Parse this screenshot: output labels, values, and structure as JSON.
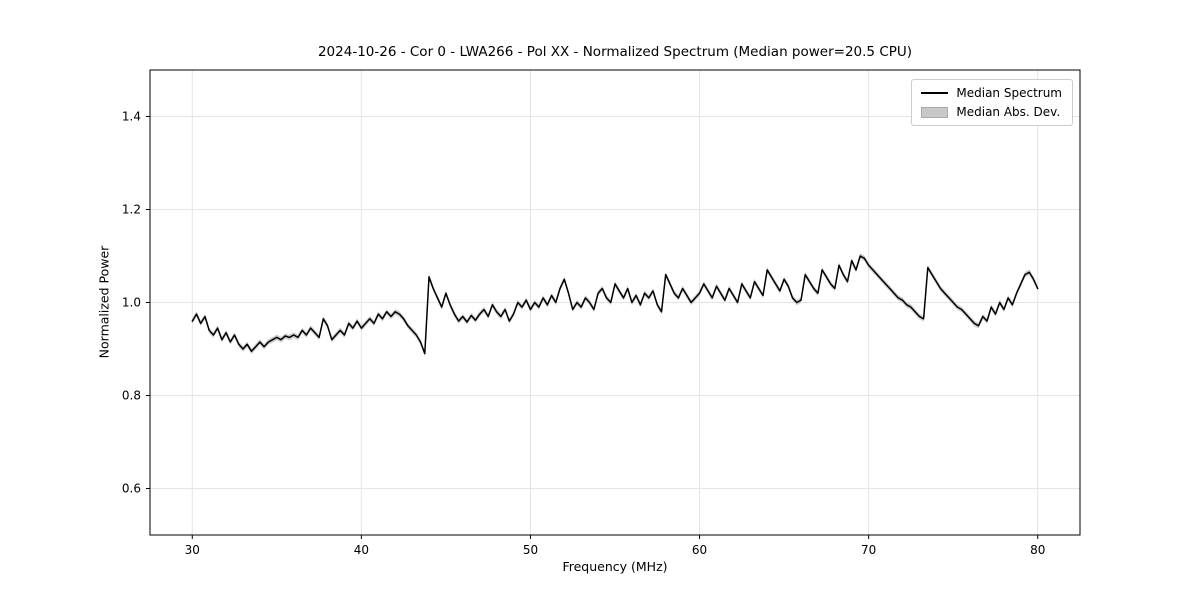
{
  "chart_data": {
    "type": "line",
    "title": "2024-10-26 - Cor 0 - LWA266 - Pol XX - Normalized Spectrum (Median power=20.5 CPU)",
    "xlabel": "Frequency (MHz)",
    "ylabel": "Normalized Power",
    "xlim": [
      27.5,
      82.5
    ],
    "ylim": [
      0.5,
      1.5
    ],
    "xticks": [
      30,
      40,
      50,
      60,
      70,
      80
    ],
    "xtick_labels": [
      "30",
      "40",
      "50",
      "60",
      "70",
      "80"
    ],
    "yticks": [
      0.6,
      0.8,
      1.0,
      1.2,
      1.4
    ],
    "ytick_labels": [
      "0.6",
      "0.8",
      "1.0",
      "1.2",
      "1.4"
    ],
    "grid": true,
    "legend_position": "upper right",
    "series": [
      {
        "name": "Median Spectrum",
        "color": "#000000",
        "x": [
          30,
          30.25,
          30.5,
          30.75,
          31,
          31.25,
          31.5,
          31.75,
          32,
          32.25,
          32.5,
          32.75,
          33,
          33.25,
          33.5,
          33.75,
          34,
          34.25,
          34.5,
          34.75,
          35,
          35.25,
          35.5,
          35.75,
          36,
          36.25,
          36.5,
          36.75,
          37,
          37.25,
          37.5,
          37.75,
          38,
          38.25,
          38.5,
          38.75,
          39,
          39.25,
          39.5,
          39.75,
          40,
          40.25,
          40.5,
          40.75,
          41,
          41.25,
          41.5,
          41.75,
          42,
          42.25,
          42.5,
          42.75,
          43,
          43.25,
          43.5,
          43.75,
          44,
          44.25,
          44.5,
          44.75,
          45,
          45.25,
          45.5,
          45.75,
          46,
          46.25,
          46.5,
          46.75,
          47,
          47.25,
          47.5,
          47.75,
          48,
          48.25,
          48.5,
          48.75,
          49,
          49.25,
          49.5,
          49.75,
          50,
          50.25,
          50.5,
          50.75,
          51,
          51.25,
          51.5,
          51.75,
          52,
          52.25,
          52.5,
          52.75,
          53,
          53.25,
          53.5,
          53.75,
          54,
          54.25,
          54.5,
          54.75,
          55,
          55.25,
          55.5,
          55.75,
          56,
          56.25,
          56.5,
          56.75,
          57,
          57.25,
          57.5,
          57.75,
          58,
          58.25,
          58.5,
          58.75,
          59,
          59.25,
          59.5,
          59.75,
          60,
          60.25,
          60.5,
          60.75,
          61,
          61.25,
          61.5,
          61.75,
          62,
          62.25,
          62.5,
          62.75,
          63,
          63.25,
          63.5,
          63.75,
          64,
          64.25,
          64.5,
          64.75,
          65,
          65.25,
          65.5,
          65.75,
          66,
          66.25,
          66.5,
          66.75,
          67,
          67.25,
          67.5,
          67.75,
          68,
          68.25,
          68.5,
          68.75,
          69,
          69.25,
          69.5,
          69.75,
          70,
          70.25,
          70.5,
          70.75,
          71,
          71.25,
          71.5,
          71.75,
          72,
          72.25,
          72.5,
          72.75,
          73,
          73.25,
          73.5,
          73.75,
          74,
          74.25,
          74.5,
          74.75,
          75,
          75.25,
          75.5,
          75.75,
          76,
          76.25,
          76.5,
          76.75,
          77,
          77.25,
          77.5,
          77.75,
          78,
          78.25,
          78.5,
          78.75,
          79,
          79.25,
          79.5,
          79.75,
          80
        ],
        "y": [
          0.96,
          0.975,
          0.955,
          0.97,
          0.94,
          0.93,
          0.945,
          0.92,
          0.935,
          0.915,
          0.93,
          0.91,
          0.9,
          0.91,
          0.895,
          0.905,
          0.915,
          0.905,
          0.915,
          0.92,
          0.925,
          0.92,
          0.928,
          0.925,
          0.93,
          0.925,
          0.94,
          0.93,
          0.945,
          0.935,
          0.925,
          0.965,
          0.95,
          0.92,
          0.93,
          0.94,
          0.93,
          0.955,
          0.945,
          0.96,
          0.945,
          0.955,
          0.965,
          0.955,
          0.975,
          0.965,
          0.98,
          0.97,
          0.98,
          0.975,
          0.965,
          0.95,
          0.94,
          0.93,
          0.915,
          0.89,
          1.055,
          1.03,
          1.01,
          0.99,
          1.02,
          0.995,
          0.975,
          0.96,
          0.97,
          0.958,
          0.972,
          0.962,
          0.975,
          0.985,
          0.97,
          0.995,
          0.98,
          0.97,
          0.985,
          0.96,
          0.975,
          1.0,
          0.99,
          1.005,
          0.985,
          1.0,
          0.99,
          1.01,
          0.995,
          1.015,
          1.0,
          1.03,
          1.05,
          1.02,
          0.985,
          1.0,
          0.99,
          1.01,
          1.0,
          0.985,
          1.02,
          1.03,
          1.01,
          1.0,
          1.04,
          1.025,
          1.01,
          1.03,
          1.0,
          1.015,
          0.995,
          1.02,
          1.01,
          1.025,
          0.995,
          0.98,
          1.06,
          1.04,
          1.02,
          1.01,
          1.03,
          1.015,
          1.0,
          1.01,
          1.02,
          1.04,
          1.025,
          1.01,
          1.035,
          1.02,
          1.005,
          1.03,
          1.015,
          1.0,
          1.04,
          1.025,
          1.01,
          1.045,
          1.03,
          1.015,
          1.07,
          1.055,
          1.04,
          1.025,
          1.05,
          1.035,
          1.01,
          1.0,
          1.005,
          1.06,
          1.045,
          1.03,
          1.02,
          1.07,
          1.055,
          1.04,
          1.03,
          1.08,
          1.06,
          1.045,
          1.09,
          1.07,
          1.1,
          1.095,
          1.08,
          1.07,
          1.06,
          1.05,
          1.04,
          1.03,
          1.02,
          1.01,
          1.005,
          0.995,
          0.99,
          0.98,
          0.97,
          0.965,
          1.075,
          1.06,
          1.045,
          1.03,
          1.02,
          1.01,
          1.0,
          0.99,
          0.985,
          0.975,
          0.965,
          0.955,
          0.95,
          0.97,
          0.96,
          0.99,
          0.975,
          1.0,
          0.985,
          1.01,
          0.995,
          1.02,
          1.04,
          1.06,
          1.065,
          1.05,
          1.03
        ]
      },
      {
        "name": "Median Abs. Dev.",
        "type": "band",
        "color": "#c8c8c8",
        "mad": 0.006
      }
    ]
  }
}
